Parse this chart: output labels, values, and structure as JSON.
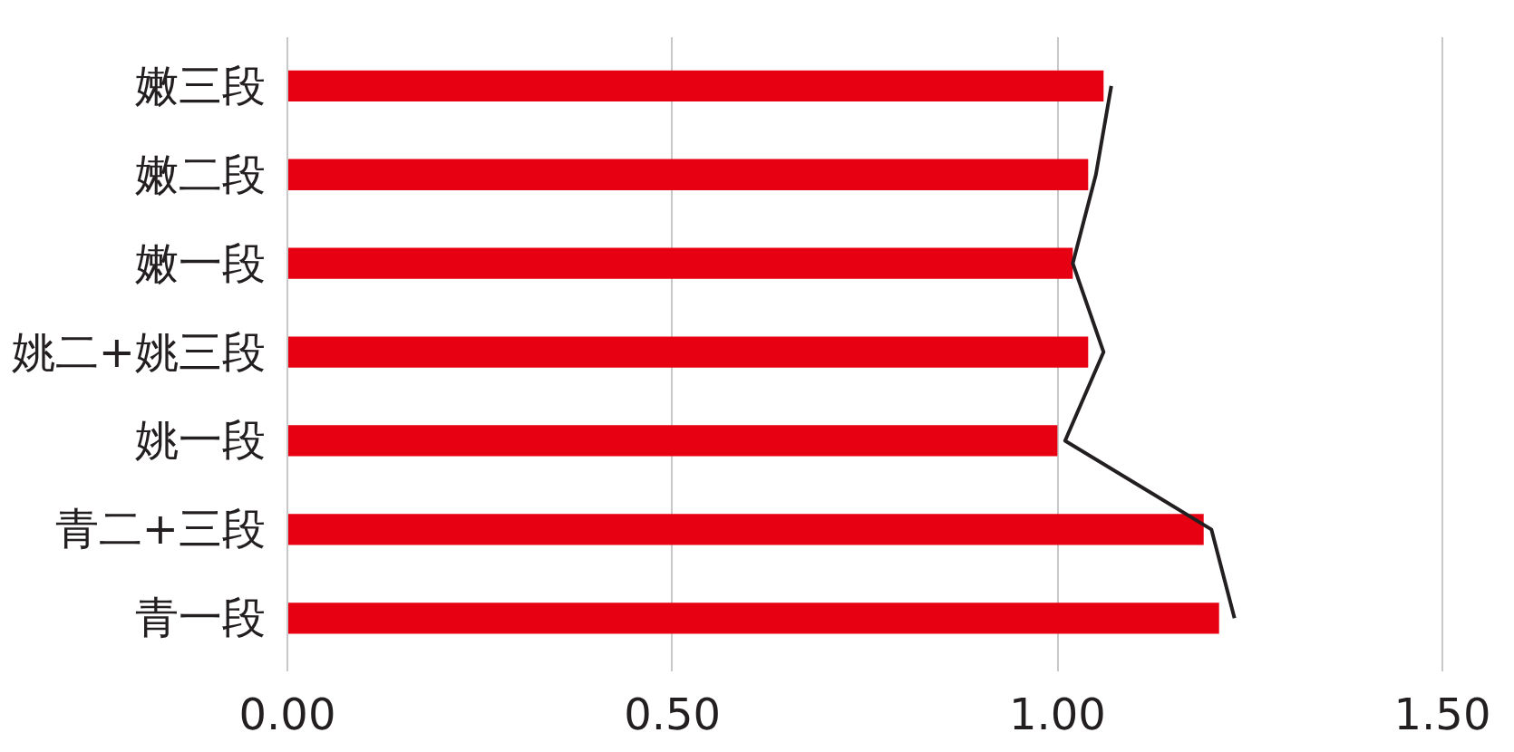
{
  "chart_data": {
    "type": "bar",
    "orientation": "horizontal",
    "categories": [
      "嫩三段",
      "嫩二段",
      "嫩一段",
      "姚二+姚三段",
      "姚一段",
      "青二+三段",
      "青一段"
    ],
    "series": [
      {
        "color": "#e60012",
        "values": [
          1.06,
          1.04,
          1.02,
          1.04,
          1.0,
          1.19,
          1.21
        ]
      },
      {
        "type": "line",
        "color": "#231f20",
        "values": [
          1.07,
          1.05,
          1.02,
          1.06,
          1.01,
          1.2,
          1.23
        ]
      }
    ],
    "xlim": [
      0,
      1.5
    ],
    "xticks": [
      {
        "value": 0,
        "label": "0.00"
      },
      {
        "value": 0.5,
        "label": "0.50"
      },
      {
        "value": 1,
        "label": "1.00"
      },
      {
        "value": 1.5,
        "label": "1.50"
      }
    ],
    "grid": "x",
    "marker": "none",
    "line_style": "solid"
  }
}
